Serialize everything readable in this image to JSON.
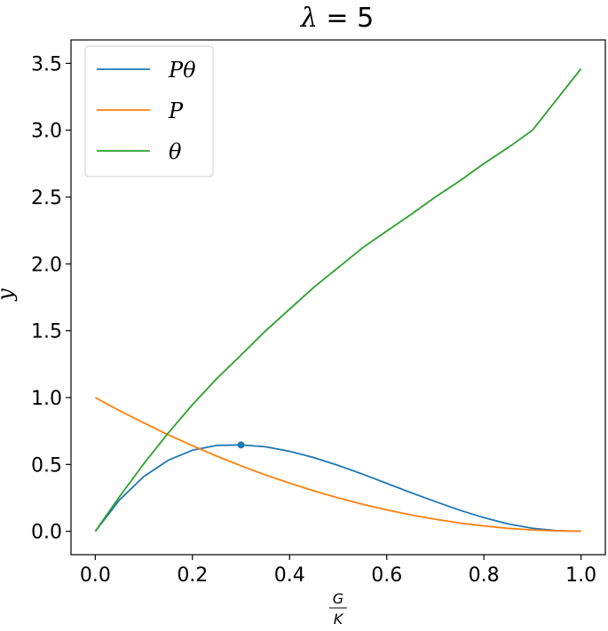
{
  "chart_data": {
    "type": "line",
    "title": "λ = 5",
    "title_parts": {
      "symbol": "λ",
      "rest": " = 5"
    },
    "xlabel": {
      "numerator": "G",
      "denominator": "K"
    },
    "ylabel": "y",
    "xlim": [
      -0.05,
      1.05
    ],
    "ylim": [
      -0.175,
      3.675
    ],
    "xticks": [
      0.0,
      0.2,
      0.4,
      0.6,
      0.8,
      1.0
    ],
    "xtick_labels": [
      "0.0",
      "0.2",
      "0.4",
      "0.6",
      "0.8",
      "1.0"
    ],
    "yticks": [
      0.0,
      0.5,
      1.0,
      1.5,
      2.0,
      2.5,
      3.0,
      3.5
    ],
    "ytick_labels": [
      "0.0",
      "0.5",
      "1.0",
      "1.5",
      "2.0",
      "2.5",
      "3.0",
      "3.5"
    ],
    "grid": false,
    "legend_position": "upper-left",
    "x": [
      0.0,
      0.05,
      0.1,
      0.15,
      0.2,
      0.25,
      0.3,
      0.35,
      0.4,
      0.45,
      0.5,
      0.55,
      0.6,
      0.65,
      0.7,
      0.75,
      0.8,
      0.85,
      0.9,
      0.95,
      1.0
    ],
    "series": [
      {
        "name": "Pθ",
        "color": "#1f77b4",
        "values": [
          0.0,
          0.235,
          0.41,
          0.531,
          0.606,
          0.642,
          0.646,
          0.632,
          0.598,
          0.551,
          0.493,
          0.428,
          0.359,
          0.289,
          0.222,
          0.158,
          0.102,
          0.055,
          0.022,
          0.005,
          0.0
        ]
      },
      {
        "name": "P",
        "color": "#ff7f0e",
        "values": [
          1.0,
          0.902,
          0.81,
          0.722,
          0.64,
          0.562,
          0.49,
          0.422,
          0.36,
          0.302,
          0.25,
          0.202,
          0.16,
          0.122,
          0.09,
          0.062,
          0.04,
          0.022,
          0.01,
          0.003,
          0.0
        ]
      },
      {
        "name": "θ",
        "color": "#2ca02c",
        "values": [
          0.0,
          0.26,
          0.506,
          0.735,
          0.947,
          1.142,
          1.318,
          1.497,
          1.662,
          1.825,
          1.972,
          2.12,
          2.245,
          2.37,
          2.5,
          2.62,
          2.75,
          2.87,
          3.0,
          3.23,
          3.46
        ]
      }
    ],
    "marker": {
      "series": "Pθ",
      "x": 0.3,
      "y": 0.646,
      "color": "#1f77b4"
    }
  }
}
